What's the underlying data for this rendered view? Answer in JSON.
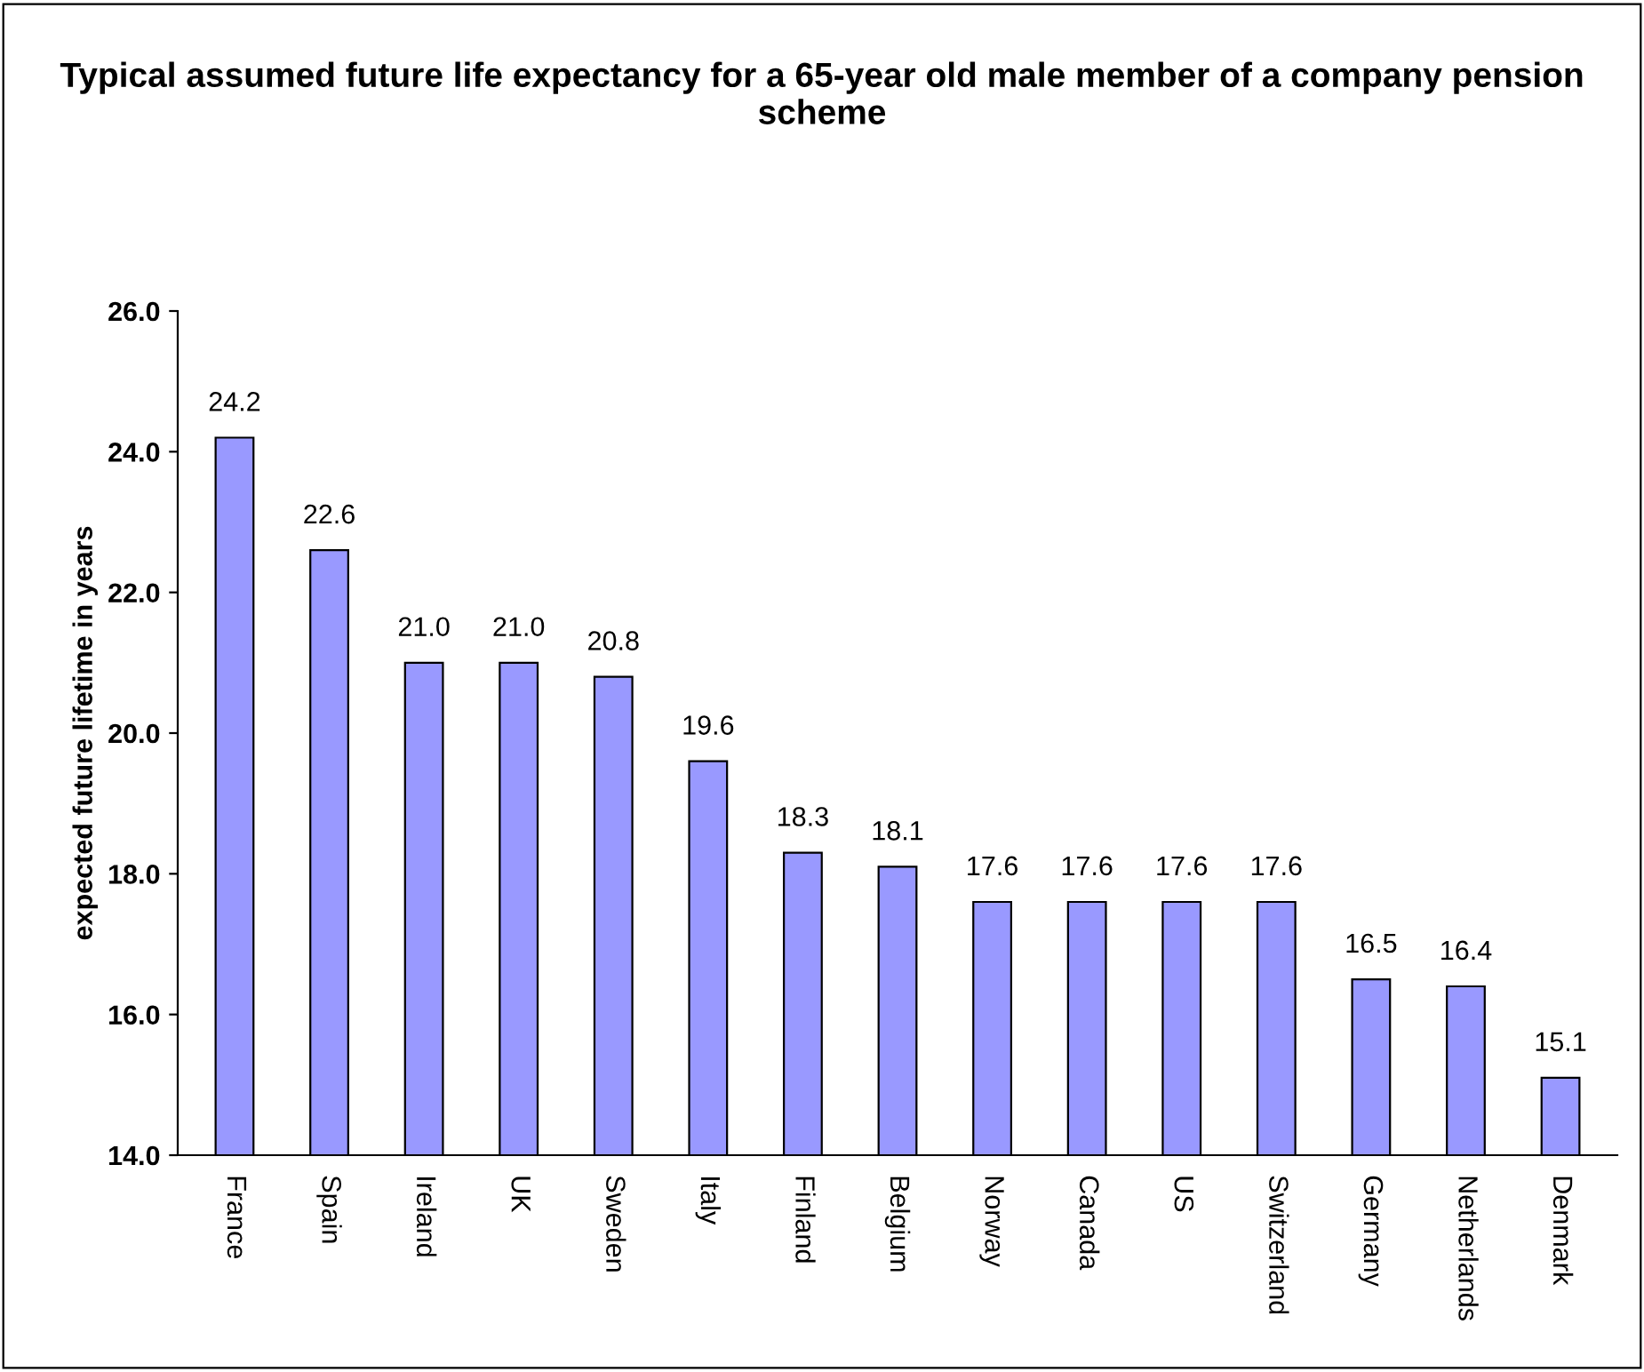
{
  "chart_data": {
    "type": "bar",
    "title": "Typical assumed future life expectancy for a 65-year old male member of a company pension scheme",
    "ylabel": "expected future lifetime in years",
    "categories": [
      "France",
      "Spain",
      "Ireland",
      "UK",
      "Sweden",
      "Italy",
      "Finland",
      "Belgium",
      "Norway",
      "Canada",
      "US",
      "Switzerland",
      "Germany",
      "Netherlands",
      "Denmark"
    ],
    "values": [
      24.2,
      22.6,
      21.0,
      21.0,
      20.8,
      19.6,
      18.3,
      18.1,
      17.6,
      17.6,
      17.6,
      17.6,
      16.5,
      16.4,
      15.1
    ],
    "color": "#9999ff",
    "ylim": [
      14,
      26
    ],
    "yticks": [
      {
        "value": 14,
        "label": "14.0"
      },
      {
        "value": 16,
        "label": "16.0"
      },
      {
        "value": 18,
        "label": "18.0"
      },
      {
        "value": 20,
        "label": "20.0"
      },
      {
        "value": 22,
        "label": "22.0"
      },
      {
        "value": 24,
        "label": "24.0"
      },
      {
        "value": 26,
        "label": "26.0"
      }
    ],
    "value_labels": [
      "24.2",
      "22.6",
      "21.0",
      "21.0",
      "20.8",
      "19.6",
      "18.3",
      "18.1",
      "17.6",
      "17.6",
      "17.6",
      "17.6",
      "16.5",
      "16.4",
      "15.1"
    ],
    "grid": false,
    "legend": false
  }
}
